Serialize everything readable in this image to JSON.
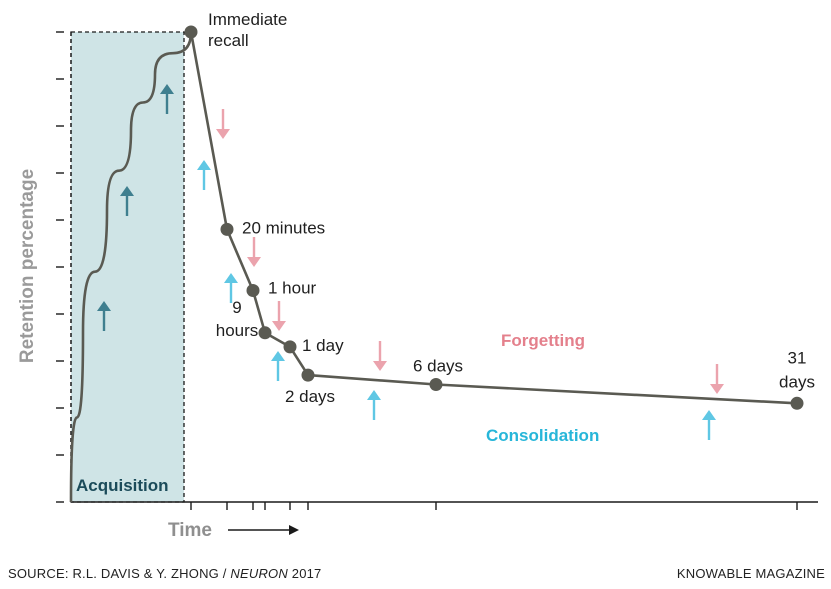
{
  "chart_data": {
    "type": "line",
    "title": "",
    "ylabel": "Retention percentage",
    "xlabel": "Time",
    "acquisition_label": "Acquisition",
    "forgetting_label": "Forgetting",
    "consolidation_label": "Consolidation",
    "points": [
      {
        "label": "Immediate recall",
        "lines": [
          "Immediate",
          "recall"
        ],
        "x": 0,
        "y": 100
      },
      {
        "label": "20 minutes",
        "lines": [
          "20 minutes"
        ],
        "x": 1,
        "y": 58
      },
      {
        "label": "1 hour",
        "lines": [
          "1 hour"
        ],
        "x": 2,
        "y": 45
      },
      {
        "label": "9 hours",
        "lines": [
          "9",
          "hours"
        ],
        "x": 3,
        "y": 36
      },
      {
        "label": "1 day",
        "lines": [
          "1 day"
        ],
        "x": 4,
        "y": 33
      },
      {
        "label": "2 days",
        "lines": [
          "2 days"
        ],
        "x": 5,
        "y": 27
      },
      {
        "label": "6 days",
        "lines": [
          "6 days"
        ],
        "x": 6,
        "y": 25
      },
      {
        "label": "31 days",
        "lines": [
          "31",
          "days"
        ],
        "x": 7,
        "y": 21
      }
    ],
    "acquisition_curve": [
      [
        -1.0,
        0
      ],
      [
        -0.9,
        36
      ],
      [
        -0.7,
        62
      ],
      [
        -0.5,
        79
      ],
      [
        -0.3,
        91
      ],
      [
        0,
        100
      ]
    ],
    "ylim": [
      0,
      100
    ],
    "colors": {
      "line": "#5a5a52",
      "point": "#5a5a52",
      "acquisition_fill": "#cfe4e6",
      "acquisition_text": "#1b4b5a",
      "acquisition_arrow": "#3f7f8f",
      "forgetting": "#e4808c",
      "forgetting_arrow": "#eba3ad",
      "consolidation": "#27b6d9",
      "consolidation_arrow": "#5fc7e4",
      "axis": "#1a1a1a",
      "axis_label": "#9a9a9a"
    }
  },
  "footer": {
    "source_prefix": "SOURCE: R.L. DAVIS & Y. ZHONG / ",
    "source_journal": "NEURON",
    "source_year": " 2017",
    "credit": "KNOWABLE MAGAZINE"
  }
}
